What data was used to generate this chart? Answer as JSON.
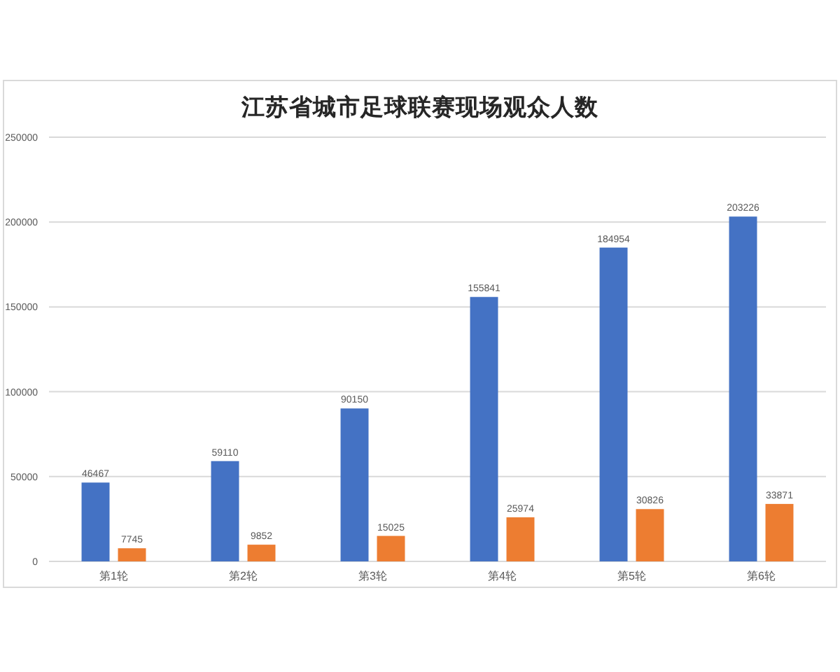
{
  "chart_data": {
    "type": "bar",
    "title": "江苏省城市足球联赛现场观众人数",
    "categories": [
      "第1轮",
      "第2轮",
      "第3轮",
      "第4轮",
      "第5轮",
      "第6轮"
    ],
    "series": [
      {
        "color": "#4472c4",
        "values": [
          46467,
          59110,
          90150,
          155841,
          184954,
          203226
        ]
      },
      {
        "color": "#ed7d31",
        "values": [
          7745,
          9852,
          15025,
          25974,
          30826,
          33871
        ]
      }
    ],
    "ylim": [
      0,
      250000
    ],
    "yticks": [
      0,
      50000,
      100000,
      150000,
      200000,
      250000
    ],
    "grid": "y",
    "data_labels": true
  }
}
